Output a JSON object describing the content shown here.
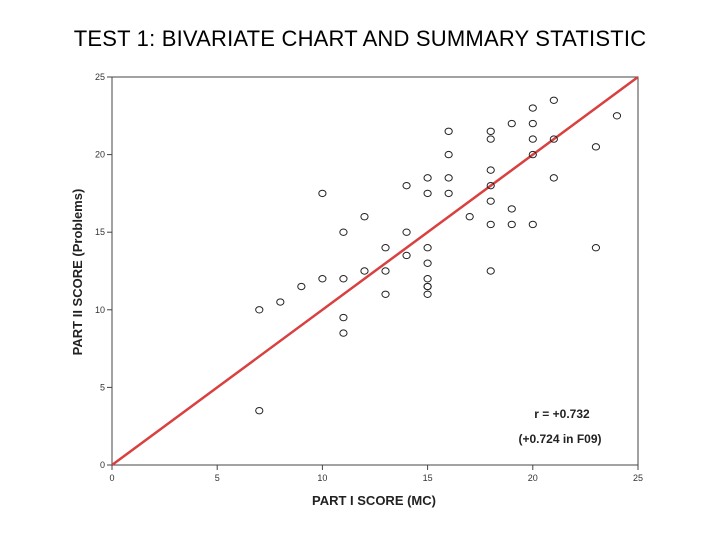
{
  "slide": {
    "title": "TEST 1: BIVARIATE CHART AND SUMMARY STATISTIC"
  },
  "chart_data": {
    "type": "scatter",
    "title": "TEST 1: BIVARIATE CHART AND SUMMARY STATISTIC",
    "xlabel": "PART I SCORE (MC)",
    "ylabel": "PART II SCORE (Problems)",
    "xlim": [
      0,
      25
    ],
    "ylim": [
      0,
      25
    ],
    "xticks": [
      0,
      5,
      10,
      15,
      20,
      25
    ],
    "yticks": [
      0,
      5,
      10,
      15,
      20,
      25
    ],
    "grid": false,
    "marker": "hollow-circle",
    "points": [
      [
        7,
        10
      ],
      [
        7,
        3.5
      ],
      [
        8,
        10.5
      ],
      [
        9,
        11.5
      ],
      [
        10,
        17.5
      ],
      [
        10,
        12
      ],
      [
        11,
        15
      ],
      [
        11,
        12
      ],
      [
        11,
        9.5
      ],
      [
        11,
        8.5
      ],
      [
        12,
        16
      ],
      [
        12,
        12.5
      ],
      [
        13,
        14
      ],
      [
        13,
        12.5
      ],
      [
        13,
        11
      ],
      [
        14,
        18
      ],
      [
        14,
        15
      ],
      [
        14,
        13.5
      ],
      [
        15,
        18.5
      ],
      [
        15,
        17.5
      ],
      [
        15,
        14
      ],
      [
        15,
        13
      ],
      [
        15,
        12
      ],
      [
        15,
        11.5
      ],
      [
        15,
        11.5
      ],
      [
        15,
        11
      ],
      [
        16,
        21.5
      ],
      [
        16,
        20
      ],
      [
        16,
        18.5
      ],
      [
        16,
        17.5
      ],
      [
        17,
        16
      ],
      [
        18,
        21.5
      ],
      [
        18,
        21
      ],
      [
        18,
        19
      ],
      [
        18,
        18
      ],
      [
        18,
        17
      ],
      [
        18,
        15.5
      ],
      [
        18,
        12.5
      ],
      [
        19,
        22
      ],
      [
        19,
        16.5
      ],
      [
        19,
        15.5
      ],
      [
        20,
        23
      ],
      [
        20,
        22
      ],
      [
        20,
        21
      ],
      [
        20,
        20
      ],
      [
        20,
        15.5
      ],
      [
        21,
        23.5
      ],
      [
        21,
        21
      ],
      [
        21,
        18.5
      ],
      [
        23,
        20.5
      ],
      [
        23,
        14
      ],
      [
        24,
        22.5
      ]
    ],
    "reference_line": {
      "from": [
        0,
        0
      ],
      "to": [
        25,
        25
      ],
      "color": "#d94040"
    },
    "annotations": [
      "r = +0.732",
      "(+0.724 in F09)"
    ]
  },
  "colors": {
    "line": "#d94040",
    "marker": "#222222",
    "frame": "#444444"
  }
}
